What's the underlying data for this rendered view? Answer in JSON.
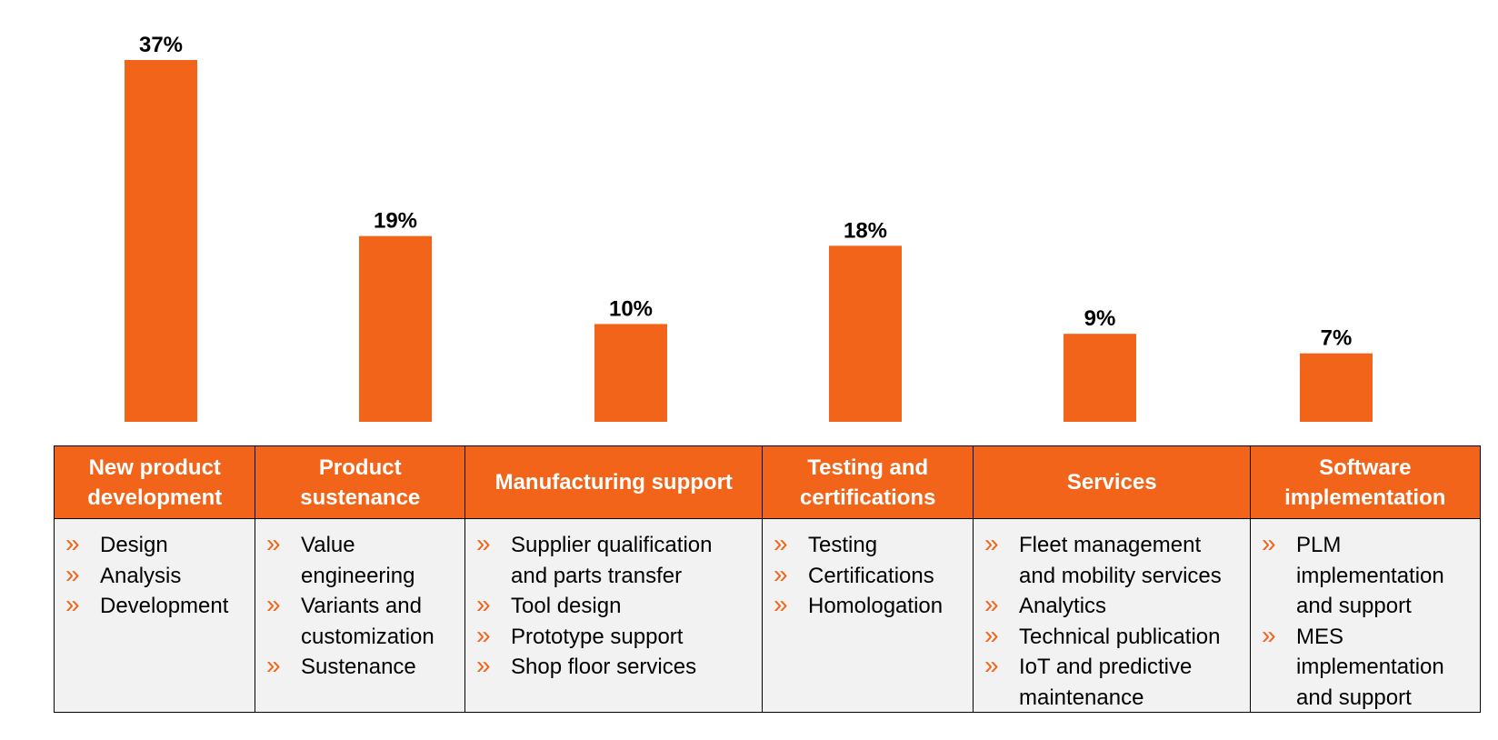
{
  "colors": {
    "accent": "#f26419",
    "table_body": "#f2f2f2",
    "border": "#000000"
  },
  "chart_data": {
    "type": "bar",
    "categories": [
      "New product development",
      "Product sustenance",
      "Manufacturing support",
      "Testing and certifications",
      "Services",
      "Software implementation"
    ],
    "values": [
      37,
      19,
      10,
      18,
      9,
      7
    ],
    "value_labels": [
      "37%",
      "19%",
      "10%",
      "18%",
      "9%",
      "7%"
    ],
    "ylim": [
      0,
      37
    ],
    "grid": false,
    "legend": "none"
  },
  "table": {
    "bullet_icon": "double-chevron-right-icon",
    "bullet_glyph": "»",
    "columns": [
      {
        "header": "New product\ndevelopment",
        "items": [
          "Design",
          "Analysis",
          "Development"
        ]
      },
      {
        "header": "Product\nsustenance",
        "items": [
          "Value\nengineering",
          "Variants and\ncustomization",
          "Sustenance"
        ]
      },
      {
        "header": "Manufacturing support",
        "items": [
          "Supplier qualification\nand parts transfer",
          "Tool design",
          "Prototype support",
          "Shop floor services"
        ]
      },
      {
        "header": "Testing and\ncertifications",
        "items": [
          "Testing",
          "Certifications",
          "Homologation"
        ]
      },
      {
        "header": "Services",
        "items": [
          "Fleet management\nand mobility services",
          "Analytics",
          "Technical publication",
          "IoT and predictive\nmaintenance"
        ]
      },
      {
        "header": "Software\nimplementation",
        "items": [
          "PLM\nimplementation\nand support",
          "MES\nimplementation\nand support"
        ]
      }
    ]
  }
}
